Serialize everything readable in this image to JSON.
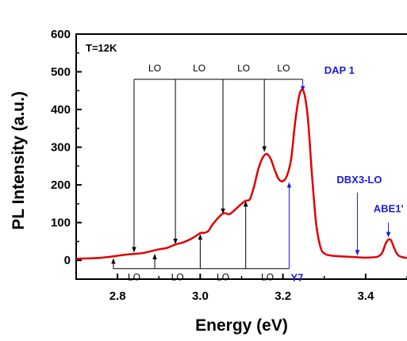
{
  "chart_data": {
    "type": "line",
    "xlabel": "Energy (eV)",
    "ylabel": "PL Intensity (a.u.)",
    "xlim": [
      2.7,
      3.5
    ],
    "ylim": [
      -50,
      600
    ],
    "xticks": [
      2.8,
      3.0,
      3.2,
      3.4
    ],
    "xtick_labels": [
      "2.8",
      "3.0",
      "3.2",
      "3.4"
    ],
    "yticks": [
      0,
      100,
      200,
      300,
      400,
      500,
      600
    ],
    "ytick_labels": [
      "0",
      "100",
      "200",
      "300",
      "400",
      "500",
      "600"
    ],
    "grid": false,
    "series_color": "#e00000",
    "annotation_blue_color": "#1a1adf",
    "series": [
      {
        "x": [
          2.7,
          2.75,
          2.78,
          2.8,
          2.82,
          2.84,
          2.86,
          2.88,
          2.9,
          2.92,
          2.94,
          2.96,
          2.98,
          3.0,
          3.01,
          3.02,
          3.03,
          3.05,
          3.06,
          3.07,
          3.08,
          3.1,
          3.11,
          3.12,
          3.13,
          3.14,
          3.15,
          3.16,
          3.17,
          3.18,
          3.19,
          3.2,
          3.21,
          3.22,
          3.23,
          3.24,
          3.25,
          3.26,
          3.27,
          3.28,
          3.29,
          3.3,
          3.32,
          3.35,
          3.38,
          3.4,
          3.42,
          3.43,
          3.44,
          3.45,
          3.46,
          3.47,
          3.48,
          3.5
        ],
        "y": [
          4,
          6,
          9,
          12,
          15,
          17,
          19,
          24,
          29,
          33,
          42,
          48,
          58,
          72,
          73,
          78,
          95,
          120,
          125,
          122,
          130,
          150,
          158,
          162,
          195,
          240,
          270,
          282,
          270,
          240,
          215,
          210,
          225,
          270,
          370,
          440,
          448,
          380,
          230,
          100,
          38,
          18,
          12,
          10,
          8,
          7,
          8,
          10,
          20,
          48,
          55,
          30,
          12,
          6
        ]
      }
    ],
    "annotations": {
      "temperature": "T=12K",
      "lo_label": "LO",
      "dap1": "DAP 1",
      "y7": "Y7",
      "dbx3_lo": "DBX3-LO",
      "abe1": "ABE1'",
      "top_arrow_start_x": 3.248,
      "top_arrow_level_y": 480,
      "top_arrows_x": [
        2.84,
        2.94,
        3.055,
        3.155,
        3.248
      ],
      "bottom_base_y": -22,
      "bottom_arrows_x": [
        2.79,
        2.89,
        3.0,
        3.11,
        3.215
      ],
      "y7_x": 3.215,
      "dbx3_arrow_x": 3.38,
      "dbx3_arrow_top_y": 180,
      "dbx3_arrow_tip_y": 10,
      "abe1_arrow_x": 3.455,
      "abe1_arrow_top_y": 100,
      "abe1_arrow_tip_y": 58
    }
  }
}
